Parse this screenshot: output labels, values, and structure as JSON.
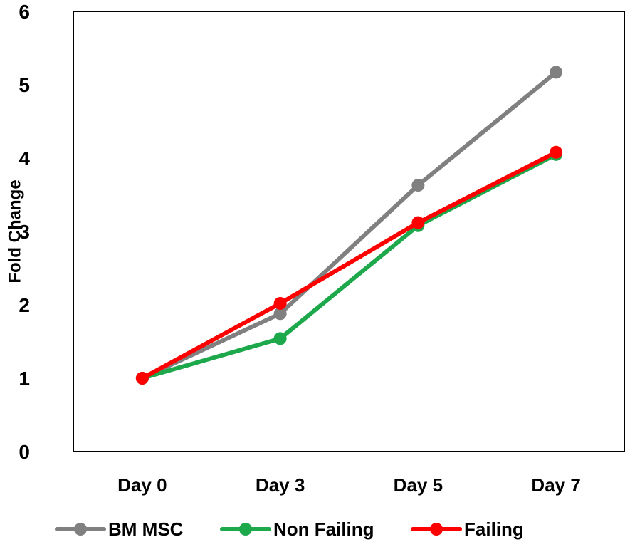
{
  "chart_data": {
    "type": "line",
    "title": "",
    "xlabel": "",
    "ylabel": "Fold Change",
    "categories": [
      "Day 0",
      "Day 3",
      "Day 5",
      "Day 7"
    ],
    "ylim": [
      0,
      6
    ],
    "yticks": [
      "0",
      "1",
      "2",
      "3",
      "4",
      "5",
      "6"
    ],
    "grid": false,
    "legend_position": "bottom",
    "series": [
      {
        "name": "BM MSC",
        "color": "#808080",
        "values": [
          1.0,
          1.88,
          3.63,
          5.17
        ]
      },
      {
        "name": "Non Failing",
        "color": "#1DA84B",
        "values": [
          1.0,
          1.54,
          3.08,
          4.05
        ]
      },
      {
        "name": "Failing",
        "color": "#FF0000",
        "values": [
          1.0,
          2.02,
          3.12,
          4.08
        ]
      }
    ]
  }
}
